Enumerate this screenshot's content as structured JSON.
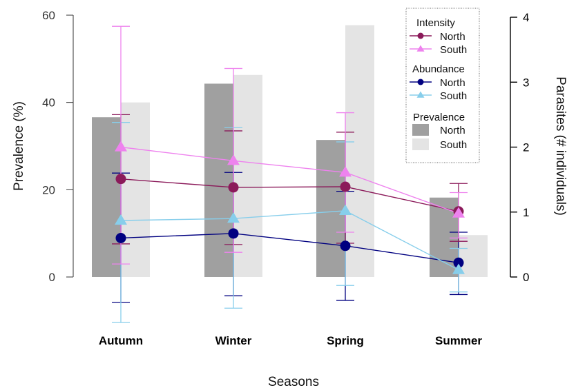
{
  "chart_data": {
    "type": "bar",
    "xlabel": "Seasons",
    "ylabel_left": "Prevalence  (%)",
    "ylabel_right": "Parasites  (# individuals)",
    "categories": [
      "Autumn",
      "Winter",
      "Spring",
      "Summer"
    ],
    "ylim_left": [
      0,
      60
    ],
    "yticks_left": [
      "0",
      "20",
      "40",
      "60"
    ],
    "ylim_right": [
      0,
      4
    ],
    "yticks_right": [
      "0",
      "1",
      "2",
      "3",
      "4"
    ],
    "legend_position": "top-right",
    "legend": {
      "intensity_title": "Intensity",
      "abundance_title": "Abundance",
      "prevalence_title": "Prevalence"
    },
    "prevalence": [
      {
        "name": "North",
        "color": "#a0a0a0",
        "values": [
          36.6,
          44.3,
          31.4,
          18.2
        ]
      },
      {
        "name": "South",
        "color": "#e4e4e4",
        "values": [
          40.0,
          46.3,
          57.7,
          9.6
        ]
      }
    ],
    "intensity": [
      {
        "name": "North",
        "color": "#8b1a5a",
        "marker": "circle",
        "values": [
          1.51,
          1.38,
          1.39,
          1.01
        ],
        "err_low": [
          0.51,
          0.5,
          0.52,
          0.55
        ],
        "err_high": [
          2.5,
          2.25,
          2.23,
          1.44
        ]
      },
      {
        "name": "South",
        "color": "#ee82ee",
        "marker": "triangle",
        "values": [
          2.0,
          1.79,
          1.61,
          0.98
        ],
        "err_low": [
          0.2,
          0.38,
          0.69,
          0.6
        ],
        "err_high": [
          3.86,
          3.21,
          2.53,
          1.3
        ]
      }
    ],
    "abundance": [
      {
        "name": "North",
        "color": "#000080",
        "marker": "circle",
        "values": [
          0.6,
          0.67,
          0.48,
          0.22
        ],
        "err_low": [
          -0.39,
          -0.29,
          -0.36,
          -0.27
        ],
        "err_high": [
          1.6,
          1.61,
          1.32,
          0.69
        ]
      },
      {
        "name": "South",
        "color": "#87ceeb",
        "marker": "triangle",
        "values": [
          0.87,
          0.9,
          1.02,
          0.11
        ],
        "err_low": [
          -0.7,
          -0.48,
          -0.13,
          -0.23
        ],
        "err_high": [
          2.38,
          2.3,
          2.08,
          0.44
        ]
      }
    ]
  }
}
